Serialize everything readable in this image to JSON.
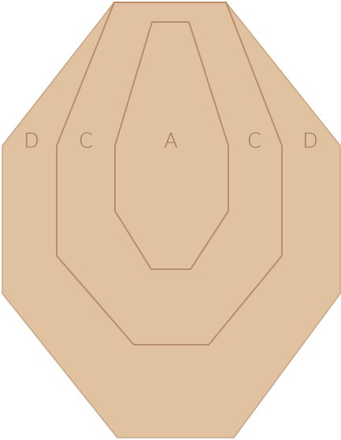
{
  "target": {
    "fill_color": "#e0c2a0",
    "line_color": "#b78d6c",
    "label_color": "#9a7455",
    "labels": {
      "left_outer": "D",
      "left_inner": "C",
      "center": "A",
      "right_inner": "C",
      "right_outer": "D"
    }
  }
}
